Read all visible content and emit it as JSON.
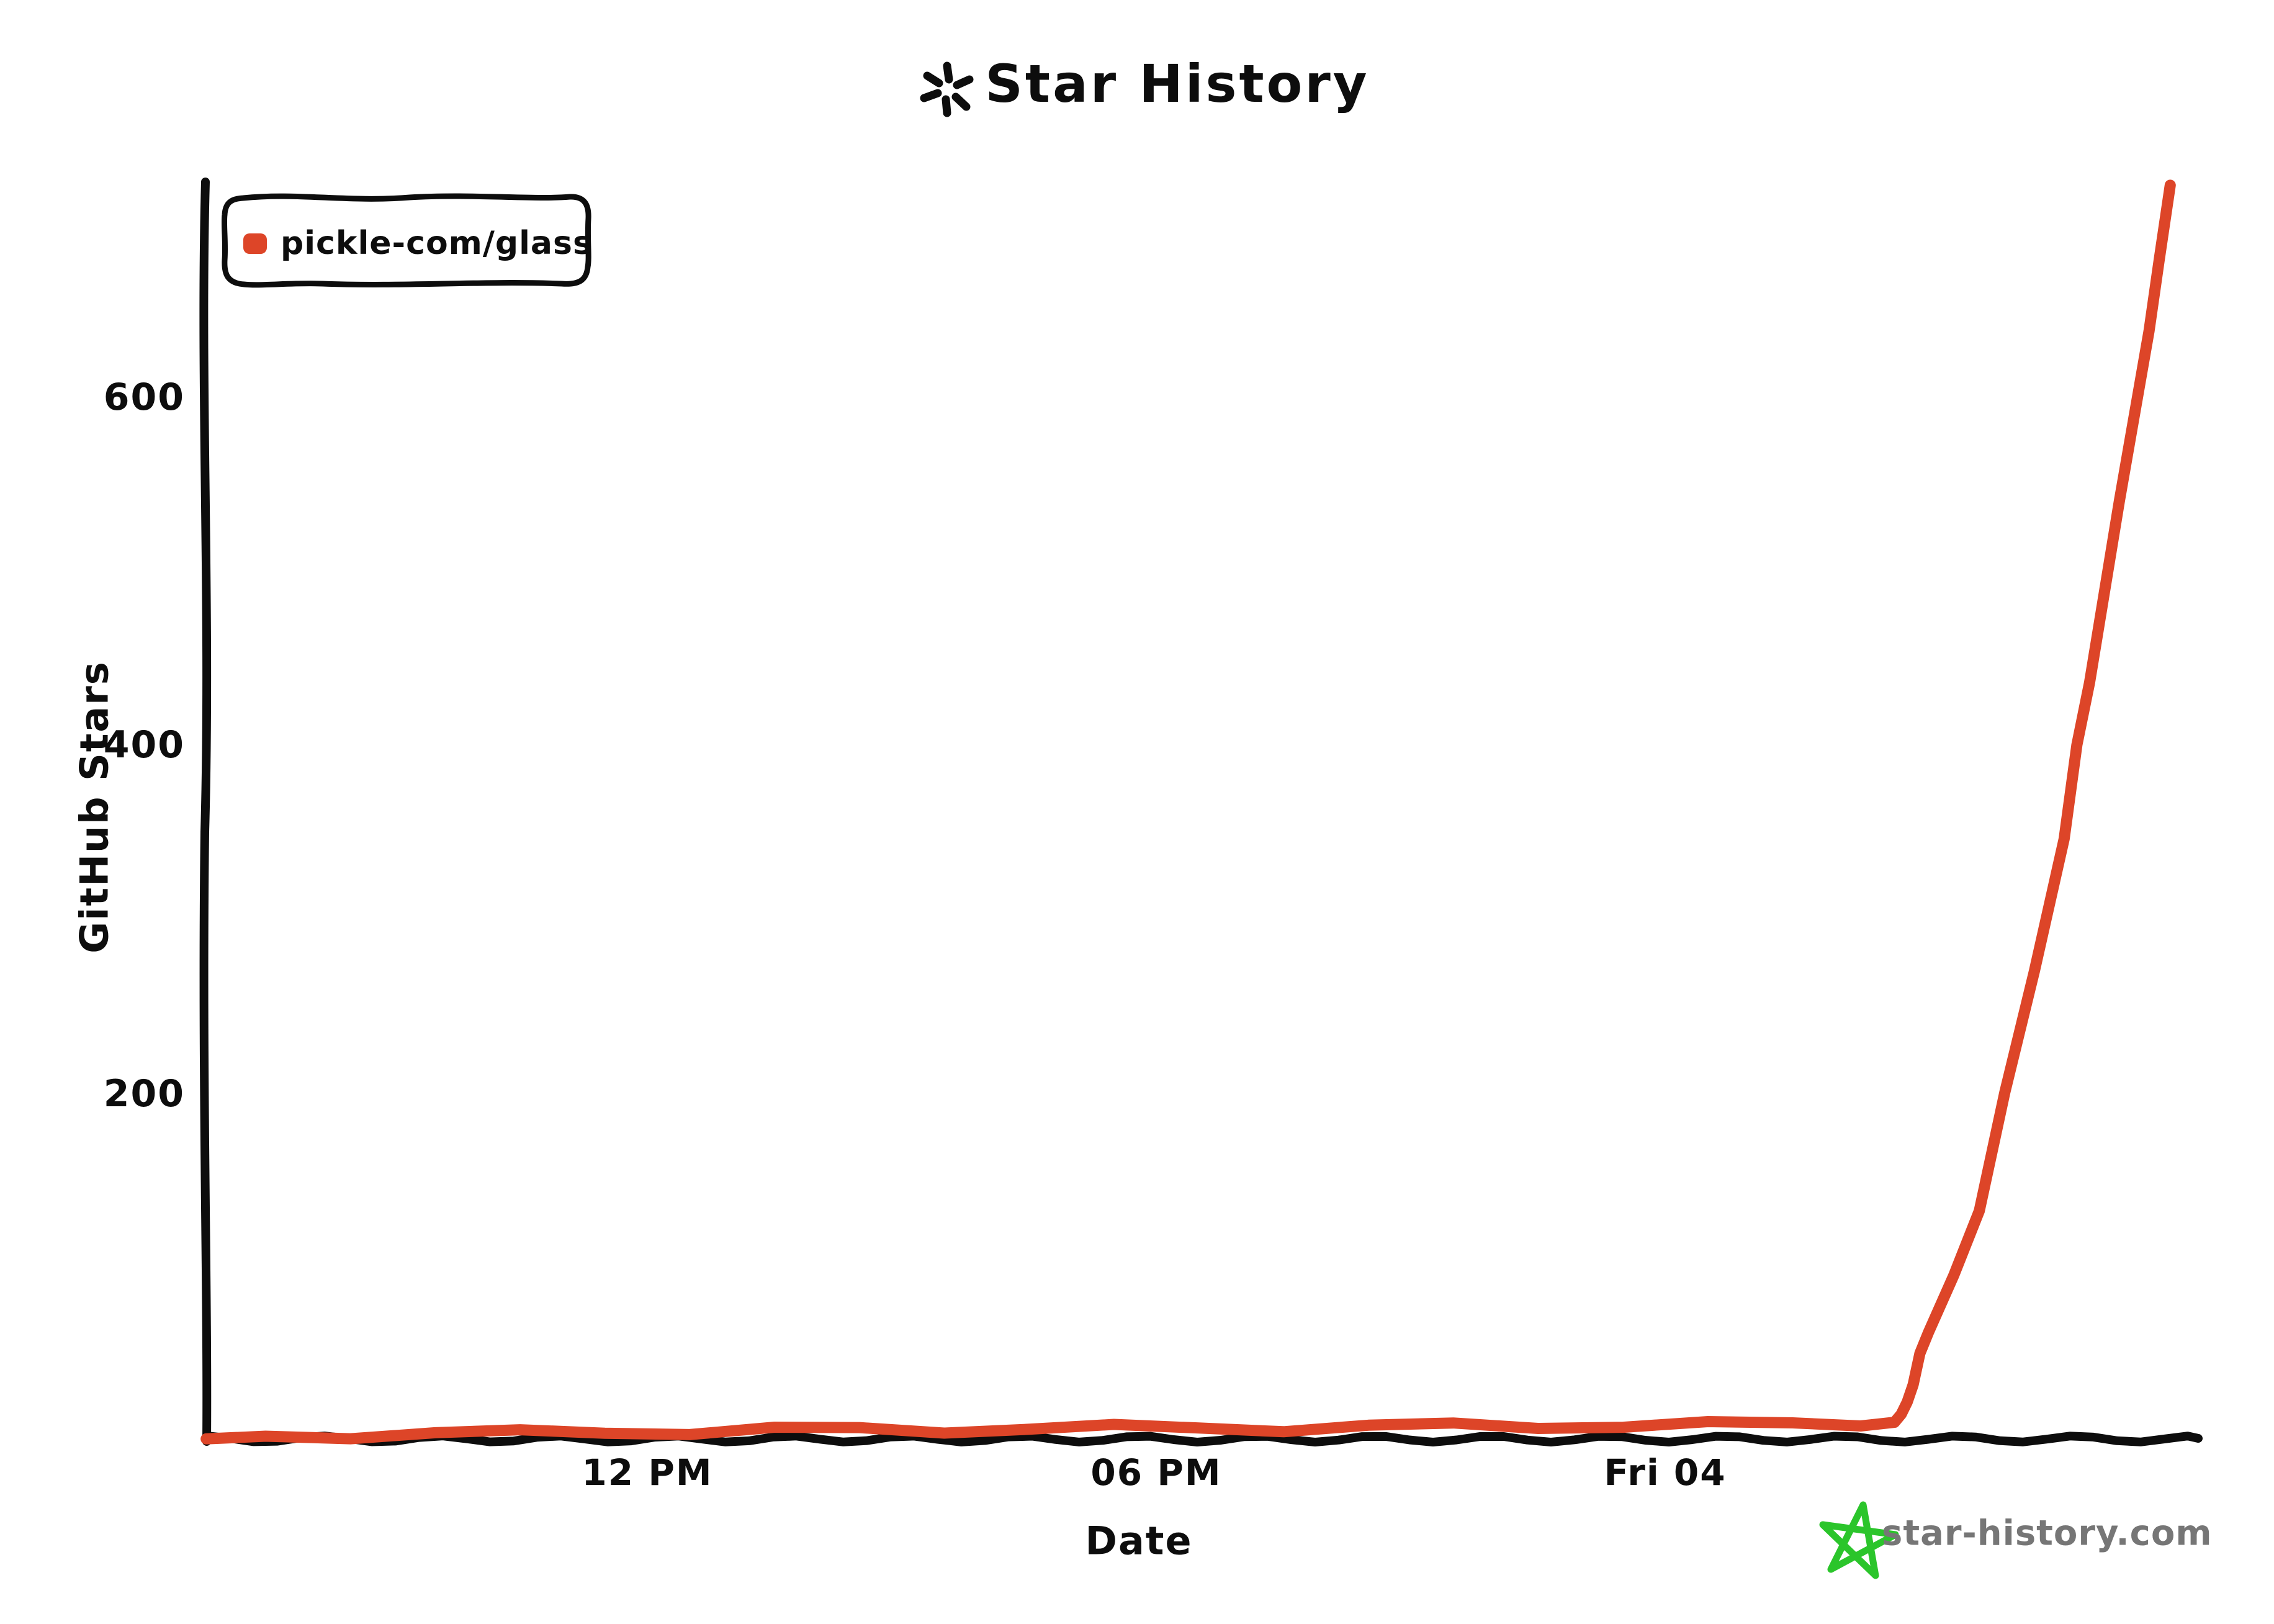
{
  "title": {
    "icon": "sparkle-asterisk",
    "text": "Star History"
  },
  "legend": {
    "items": [
      {
        "label": "pickle-com/glass",
        "color": "#DD4528"
      }
    ]
  },
  "y_axis": {
    "label": "GitHub Stars",
    "ticks": [
      "600",
      "400",
      "200"
    ]
  },
  "x_axis": {
    "label": "Date",
    "ticks": [
      "12 PM",
      "06 PM",
      "Fri 04"
    ]
  },
  "watermark": {
    "icon": "hand-drawn-star",
    "icon_color": "#2BC52B",
    "text": "star-history.com",
    "text_color": "#767676"
  },
  "chart_data": {
    "type": "line",
    "title": "Star History",
    "xlabel": "Date",
    "ylabel": "GitHub Stars",
    "x_tick_labels": [
      "12 PM",
      "06 PM",
      "Fri 04"
    ],
    "x_tick_hours": [
      12,
      18,
      24
    ],
    "x_axis_note": "hours counted from Thursday 00:00; 24 = Fri 04 midnight; axis spans ~06:45 Thu to ~06:10 Fri",
    "xlim_hours": [
      6.75,
      30.15
    ],
    "ylim": [
      0,
      730
    ],
    "y_ticks": [
      200,
      400,
      600
    ],
    "grid": false,
    "legend_position": "top-left",
    "series": [
      {
        "name": "pickle-com/glass",
        "color": "#DD4528",
        "points_hours_stars": [
          [
            6.8,
            1
          ],
          [
            7.5,
            2
          ],
          [
            8.5,
            3
          ],
          [
            9.5,
            4
          ],
          [
            10.5,
            4
          ],
          [
            11.5,
            5
          ],
          [
            12.5,
            5
          ],
          [
            13.5,
            6
          ],
          [
            14.5,
            6
          ],
          [
            15.5,
            6
          ],
          [
            16.5,
            7
          ],
          [
            17.5,
            7
          ],
          [
            18.5,
            7
          ],
          [
            19.5,
            7
          ],
          [
            20.5,
            8
          ],
          [
            21.5,
            8
          ],
          [
            22.5,
            8
          ],
          [
            23.5,
            9
          ],
          [
            24.5,
            9
          ],
          [
            25.5,
            9
          ],
          [
            26.3,
            10
          ],
          [
            26.7,
            11
          ],
          [
            26.78,
            15
          ],
          [
            26.85,
            22
          ],
          [
            26.92,
            32
          ],
          [
            27.0,
            50
          ],
          [
            27.1,
            62
          ],
          [
            27.4,
            95
          ],
          [
            27.7,
            132
          ],
          [
            28.0,
            200
          ],
          [
            28.35,
            270
          ],
          [
            28.7,
            346
          ],
          [
            28.85,
            400
          ],
          [
            29.0,
            436
          ],
          [
            29.35,
            540
          ],
          [
            29.7,
            638
          ],
          [
            29.82,
            679
          ],
          [
            29.95,
            722
          ]
        ]
      }
    ]
  }
}
